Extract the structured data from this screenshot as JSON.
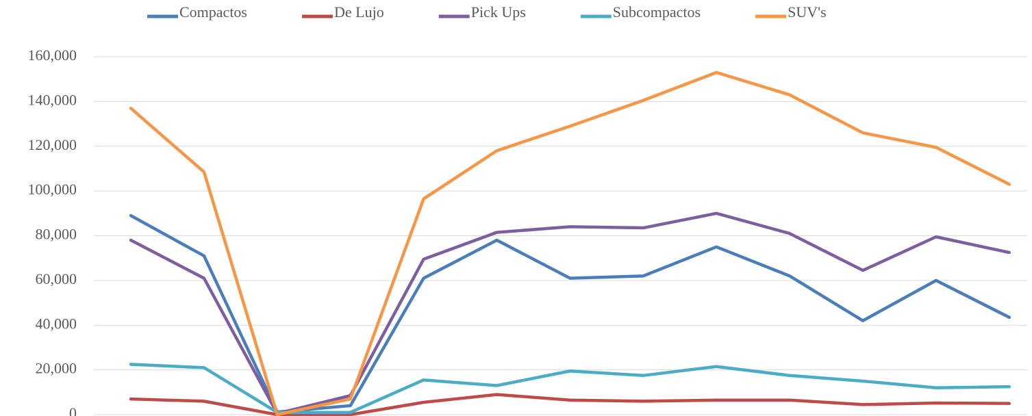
{
  "chart_data": {
    "type": "line",
    "categories": [
      null,
      null,
      null,
      null,
      null,
      null,
      null,
      null,
      null,
      null,
      null,
      null,
      null
    ],
    "series": [
      {
        "name": "Compactos",
        "color": "#4a7ebb",
        "values": [
          89000,
          71000,
          1200,
          4000,
          61000,
          78000,
          61000,
          62000,
          75000,
          62000,
          42000,
          60000,
          43500
        ]
      },
      {
        "name": "De Lujo",
        "color": "#be4b48",
        "values": [
          7000,
          6000,
          0,
          0,
          5500,
          9000,
          6500,
          6000,
          6500,
          6500,
          4500,
          5200,
          5000
        ]
      },
      {
        "name": "Pick Ups",
        "color": "#7d5fa0",
        "values": [
          78000,
          61000,
          500,
          8500,
          69500,
          81500,
          84000,
          83500,
          90000,
          81000,
          64500,
          79500,
          72500
        ]
      },
      {
        "name": "Subcompactos",
        "color": "#4bacc6",
        "values": [
          22500,
          21000,
          1000,
          1000,
          15500,
          13000,
          19500,
          17500,
          21500,
          17500,
          15000,
          12000,
          12500
        ]
      },
      {
        "name": "SUV's",
        "color": "#f79646",
        "values": [
          137000,
          108500,
          0,
          7000,
          96500,
          118000,
          129000,
          140500,
          153000,
          143000,
          126000,
          119500,
          103000
        ]
      }
    ],
    "ylim": [
      0,
      160000
    ],
    "yticks": [
      0,
      {
        "value": 20000,
        "label": "20,000"
      },
      {
        "value": 40000,
        "label": "40,000"
      },
      {
        "value": 60000,
        "label": "60,000"
      },
      {
        "value": 80000,
        "label": "80,000"
      },
      {
        "value": 100000,
        "label": "100,000"
      },
      {
        "value": 120000,
        "label": "120,000"
      },
      {
        "value": 140000,
        "label": "140,000"
      },
      {
        "value": 160000,
        "label": "160,000"
      }
    ],
    "grid": true,
    "legend": "top"
  }
}
